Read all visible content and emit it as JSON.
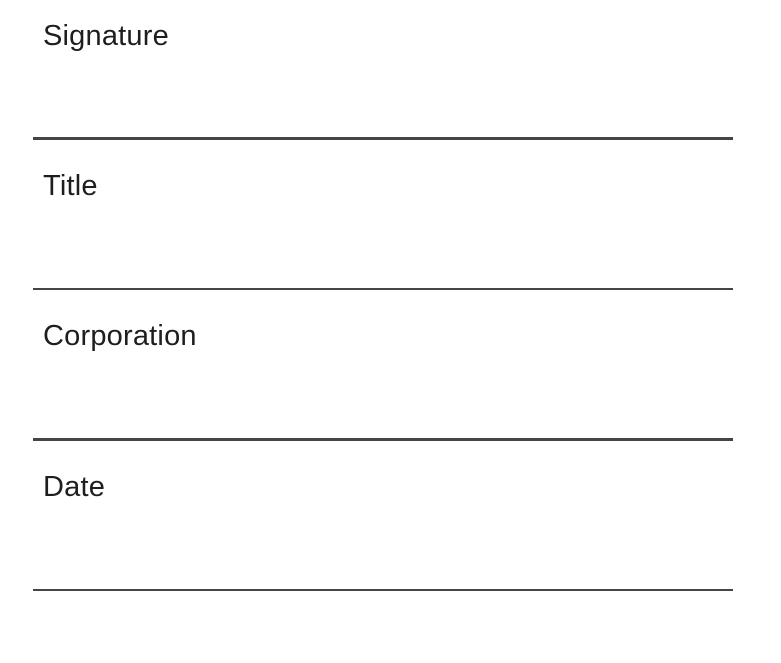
{
  "document": {
    "type": "signature-block-form",
    "background_color": "#ffffff",
    "text_color": "#1e1e1e",
    "rule_color": "#454545",
    "fields": [
      {
        "label": "Signature"
      },
      {
        "label": "Title"
      },
      {
        "label": "Corporation"
      },
      {
        "label": "Date"
      }
    ]
  }
}
